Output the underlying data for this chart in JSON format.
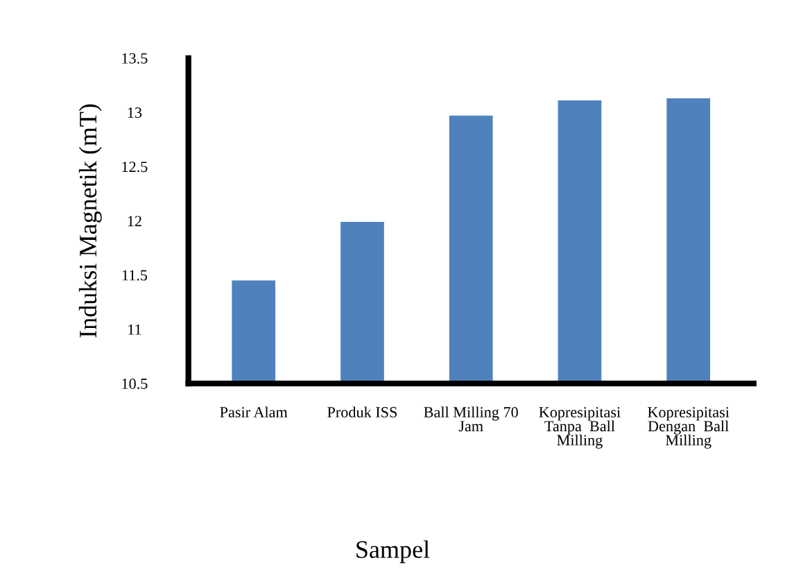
{
  "chart_data": {
    "type": "bar",
    "xlabel": "Sampel",
    "ylabel": "Induksi Magnetik (mT)",
    "categories": [
      "Pasir Alam",
      "Produk ISS",
      "Ball Milling 70\nJam",
      "Kopresipitasi\nTanpa  Ball\nMilling",
      "Kopresipitasi\nDengan  Ball\nMilling"
    ],
    "values": [
      11.45,
      11.99,
      12.97,
      13.11,
      13.13
    ],
    "color": "#4f81bd",
    "ylim": [
      10.5,
      13.5
    ],
    "yticks": [
      10.5,
      11,
      11.5,
      12,
      12.5,
      13,
      13.5
    ],
    "grid": false,
    "legend": false
  }
}
